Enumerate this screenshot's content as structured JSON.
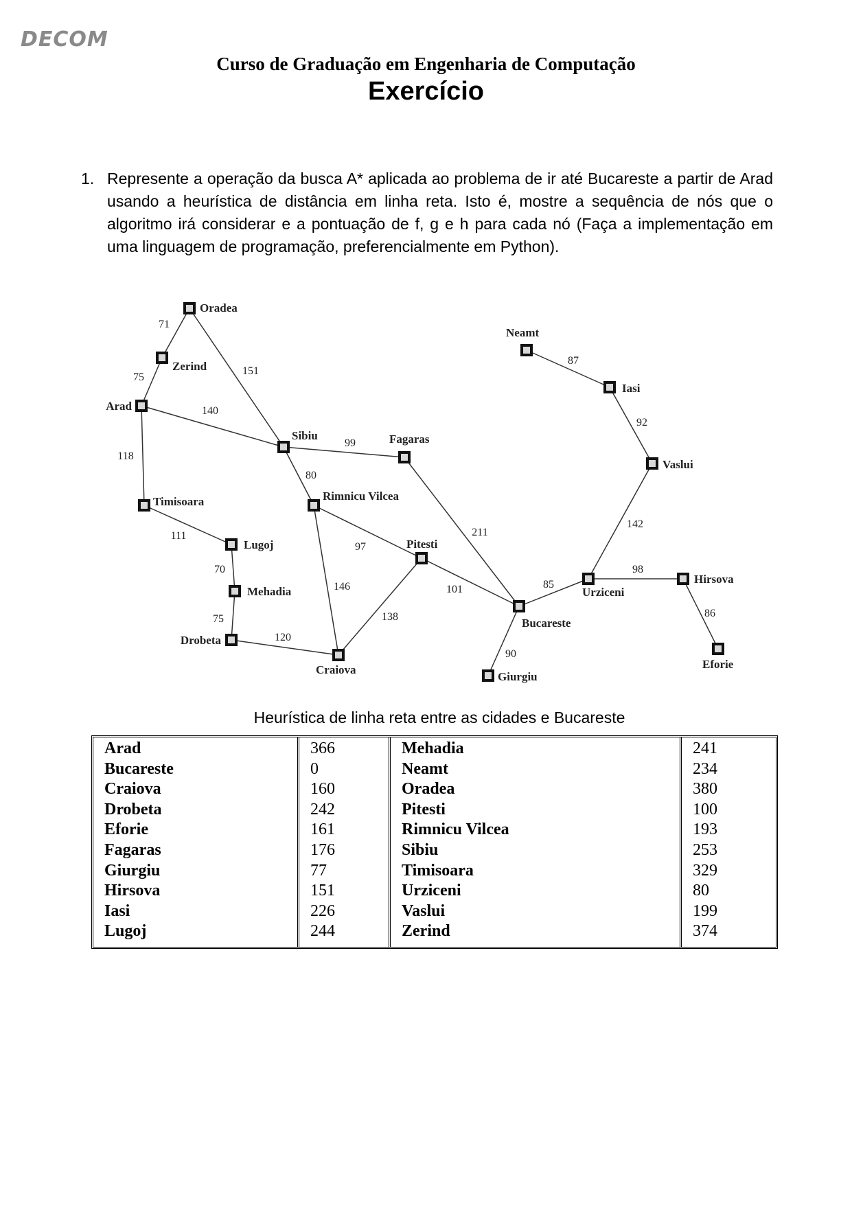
{
  "header": {
    "logo": "DECOM",
    "course": "Curso de Graduação em Engenharia de Computação",
    "title": "Exercício"
  },
  "question": {
    "number": "1.",
    "text": "Represente a operação da busca A* aplicada ao problema de ir até Bucareste a partir de Arad usando a heurística de distância em linha reta. Isto é, mostre a sequência de nós que o algoritmo irá considerar e a pontuação de f, g e h para cada nó (Faça a implementação em uma linguagem de programação, preferencialmente em Python)."
  },
  "map": {
    "cities": [
      "Oradea",
      "Zerind",
      "Arad",
      "Sibiu",
      "Fagaras",
      "Timisoara",
      "Rimnicu Vilcea",
      "Lugoj",
      "Pitesti",
      "Mehadia",
      "Drobeta",
      "Craiova",
      "Bucareste",
      "Giurgiu",
      "Urziceni",
      "Neamt",
      "Iasi",
      "Vaslui",
      "Hirsova",
      "Eforie"
    ],
    "roads": [
      {
        "a": "Oradea",
        "b": "Zerind",
        "d": 71
      },
      {
        "a": "Zerind",
        "b": "Arad",
        "d": 75
      },
      {
        "a": "Oradea",
        "b": "Sibiu",
        "d": 151
      },
      {
        "a": "Arad",
        "b": "Sibiu",
        "d": 140
      },
      {
        "a": "Arad",
        "b": "Timisoara",
        "d": 118
      },
      {
        "a": "Sibiu",
        "b": "Fagaras",
        "d": 99
      },
      {
        "a": "Sibiu",
        "b": "Rimnicu Vilcea",
        "d": 80
      },
      {
        "a": "Timisoara",
        "b": "Lugoj",
        "d": 111
      },
      {
        "a": "Lugoj",
        "b": "Mehadia",
        "d": 70
      },
      {
        "a": "Mehadia",
        "b": "Drobeta",
        "d": 75
      },
      {
        "a": "Drobeta",
        "b": "Craiova",
        "d": 120
      },
      {
        "a": "Rimnicu Vilcea",
        "b": "Pitesti",
        "d": 97
      },
      {
        "a": "Rimnicu Vilcea",
        "b": "Craiova",
        "d": 146
      },
      {
        "a": "Craiova",
        "b": "Pitesti",
        "d": 138
      },
      {
        "a": "Pitesti",
        "b": "Bucareste",
        "d": 101
      },
      {
        "a": "Fagaras",
        "b": "Bucareste",
        "d": 211
      },
      {
        "a": "Bucareste",
        "b": "Giurgiu",
        "d": 90
      },
      {
        "a": "Bucareste",
        "b": "Urziceni",
        "d": 85
      },
      {
        "a": "Urziceni",
        "b": "Hirsova",
        "d": 98
      },
      {
        "a": "Hirsova",
        "b": "Eforie",
        "d": 86
      },
      {
        "a": "Urziceni",
        "b": "Vaslui",
        "d": 142
      },
      {
        "a": "Vaslui",
        "b": "Iasi",
        "d": 92
      },
      {
        "a": "Iasi",
        "b": "Neamt",
        "d": 87
      }
    ]
  },
  "heuristic": {
    "caption": "Heurística de linha reta entre as cidades e Bucareste",
    "left": [
      {
        "city": "Arad",
        "h": "366"
      },
      {
        "city": "Bucareste",
        "h": "0"
      },
      {
        "city": "Craiova",
        "h": "160"
      },
      {
        "city": "Drobeta",
        "h": "242"
      },
      {
        "city": "Eforie",
        "h": "161"
      },
      {
        "city": "Fagaras",
        "h": "176"
      },
      {
        "city": "Giurgiu",
        "h": "77"
      },
      {
        "city": "Hirsova",
        "h": "151"
      },
      {
        "city": "Iasi",
        "h": "226"
      },
      {
        "city": "Lugoj",
        "h": "244"
      }
    ],
    "right": [
      {
        "city": "Mehadia",
        "h": "241"
      },
      {
        "city": "Neamt",
        "h": "234"
      },
      {
        "city": "Oradea",
        "h": "380"
      },
      {
        "city": "Pitesti",
        "h": "100"
      },
      {
        "city": "Rimnicu Vilcea",
        "h": "193"
      },
      {
        "city": "Sibiu",
        "h": "253"
      },
      {
        "city": "Timisoara",
        "h": "329"
      },
      {
        "city": "Urziceni",
        "h": "80"
      },
      {
        "city": "Vaslui",
        "h": "199"
      },
      {
        "city": "Zerind",
        "h": "374"
      }
    ]
  }
}
